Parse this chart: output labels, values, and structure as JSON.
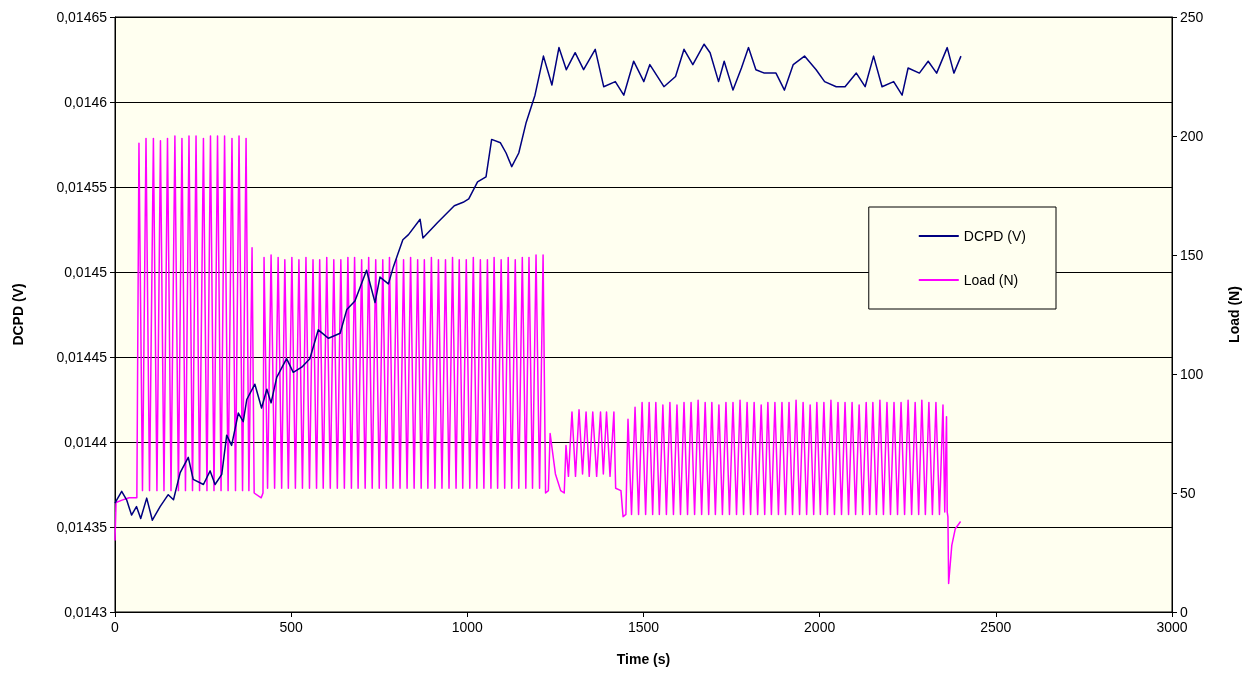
{
  "chart_data": {
    "type": "line",
    "xlabel": "Time (s)",
    "ylabel": "DCPD (V)",
    "y2label": "Load (N)",
    "xlim": [
      0,
      3000
    ],
    "xticks": [
      0,
      500,
      1000,
      1500,
      2000,
      2500,
      3000
    ],
    "ylim": [
      0.0143,
      0.01465
    ],
    "yticks": [
      {
        "value": 0.0143,
        "label": "0,0143"
      },
      {
        "value": 0.01435,
        "label": "0,01435"
      },
      {
        "value": 0.0144,
        "label": "0,0144"
      },
      {
        "value": 0.01445,
        "label": "0,01445"
      },
      {
        "value": 0.0145,
        "label": "0,0145"
      },
      {
        "value": 0.01455,
        "label": "0,01455"
      },
      {
        "value": 0.0146,
        "label": "0,0146"
      },
      {
        "value": 0.01465,
        "label": "0,01465"
      }
    ],
    "y2lim": [
      0,
      250
    ],
    "y2ticks": [
      0,
      50,
      100,
      150,
      200,
      250
    ],
    "grid": "y",
    "legend": "right",
    "marker": "none",
    "line_style": "solid",
    "series": [
      {
        "name": "DCPD (V)",
        "color": "#000080",
        "x": [
          0,
          5,
          19,
          33,
          47,
          61,
          73,
          90,
          106,
          128,
          151,
          166,
          185,
          208,
          222,
          251,
          270,
          284,
          303,
          317,
          331,
          350,
          364,
          374,
          397,
          416,
          431,
          443,
          459,
          487,
          506,
          530,
          553,
          577,
          606,
          639,
          658,
          681,
          714,
          738,
          752,
          776,
          790,
          817,
          833,
          866,
          874,
          915,
          963,
          988,
          1004,
          1029,
          1053,
          1069,
          1094,
          1110,
          1126,
          1146,
          1167,
          1192,
          1216,
          1240,
          1260,
          1281,
          1306,
          1330,
          1363,
          1387,
          1420,
          1444,
          1472,
          1501,
          1518,
          1558,
          1591,
          1615,
          1640,
          1672,
          1689,
          1713,
          1729,
          1754,
          1778,
          1798,
          1819,
          1843,
          1876,
          1900,
          1925,
          1957,
          1990,
          2014,
          2047,
          2072,
          2104,
          2129,
          2153,
          2177,
          2210,
          2234,
          2251,
          2283,
          2308,
          2332,
          2362,
          2381,
          2401
        ],
        "values": [
          0.014364,
          0.014366,
          0.014371,
          0.014366,
          0.014357,
          0.014362,
          0.014355,
          0.014367,
          0.014354,
          0.014362,
          0.014369,
          0.014366,
          0.014382,
          0.014391,
          0.014378,
          0.014375,
          0.014383,
          0.014375,
          0.014381,
          0.014404,
          0.014398,
          0.014417,
          0.014412,
          0.014425,
          0.014434,
          0.01442,
          0.014431,
          0.014423,
          0.014438,
          0.014449,
          0.014441,
          0.014444,
          0.014449,
          0.014466,
          0.014461,
          0.014464,
          0.014478,
          0.014483,
          0.014501,
          0.014482,
          0.014497,
          0.014493,
          0.014503,
          0.014519,
          0.014522,
          0.014531,
          0.01452,
          0.014529,
          0.014539,
          0.014541,
          0.014543,
          0.014553,
          0.014556,
          0.014578,
          0.014576,
          0.01457,
          0.014562,
          0.01457,
          0.014588,
          0.014604,
          0.014627,
          0.01461,
          0.014632,
          0.014619,
          0.014629,
          0.014619,
          0.014631,
          0.014609,
          0.014612,
          0.014604,
          0.014624,
          0.014612,
          0.014622,
          0.014609,
          0.014615,
          0.014631,
          0.014622,
          0.014634,
          0.014629,
          0.014612,
          0.014624,
          0.014607,
          0.01462,
          0.014632,
          0.014619,
          0.014617,
          0.014617,
          0.014607,
          0.014622,
          0.014627,
          0.014619,
          0.014612,
          0.014609,
          0.014609,
          0.014617,
          0.014609,
          0.014627,
          0.014609,
          0.014612,
          0.014604,
          0.01462,
          0.014617,
          0.014624,
          0.014617,
          0.014632,
          0.014617,
          0.014627
        ]
      },
      {
        "name": "Load (N)",
        "color": "#ff00ff",
        "axis": "y2",
        "x": [
          0,
          3,
          20,
          40,
          62,
          68,
          78,
          88,
          98,
          109,
          119,
          129,
          139,
          149,
          159,
          170,
          180,
          190,
          200,
          210,
          220,
          230,
          240,
          251,
          261,
          271,
          281,
          291,
          301,
          311,
          321,
          332,
          342,
          352,
          362,
          372,
          380,
          389,
          395,
          415,
          420,
          423,
          433,
          443,
          453,
          463,
          473,
          482,
          492,
          502,
          512,
          522,
          532,
          542,
          552,
          562,
          572,
          581,
          591,
          601,
          611,
          621,
          631,
          641,
          651,
          661,
          671,
          680,
          690,
          700,
          710,
          720,
          730,
          740,
          750,
          760,
          770,
          779,
          789,
          799,
          809,
          819,
          829,
          839,
          849,
          859,
          869,
          878,
          888,
          898,
          908,
          918,
          928,
          938,
          948,
          958,
          968,
          977,
          987,
          997,
          1007,
          1017,
          1027,
          1037,
          1047,
          1057,
          1067,
          1076,
          1086,
          1096,
          1106,
          1116,
          1126,
          1136,
          1146,
          1156,
          1166,
          1175,
          1185,
          1195,
          1205,
          1215,
          1222,
          1230,
          1235,
          1250,
          1265,
          1275,
          1280,
          1287,
          1297,
          1307,
          1317,
          1327,
          1337,
          1346,
          1356,
          1367,
          1378,
          1386,
          1395,
          1405,
          1416,
          1421,
          1436,
          1442,
          1450,
          1456,
          1466,
          1476,
          1486,
          1496,
          1506,
          1516,
          1526,
          1535,
          1545,
          1555,
          1565,
          1575,
          1585,
          1595,
          1605,
          1615,
          1625,
          1635,
          1645,
          1655,
          1665,
          1675,
          1685,
          1694,
          1704,
          1714,
          1724,
          1734,
          1744,
          1754,
          1764,
          1774,
          1784,
          1794,
          1804,
          1814,
          1824,
          1834,
          1844,
          1853,
          1863,
          1873,
          1883,
          1893,
          1903,
          1913,
          1923,
          1933,
          1943,
          1953,
          1963,
          1973,
          1983,
          1992,
          2002,
          2012,
          2022,
          2032,
          2042,
          2052,
          2062,
          2072,
          2082,
          2092,
          2102,
          2112,
          2122,
          2132,
          2142,
          2151,
          2161,
          2171,
          2181,
          2191,
          2201,
          2211,
          2221,
          2231,
          2241,
          2251,
          2261,
          2271,
          2281,
          2290,
          2300,
          2310,
          2320,
          2330,
          2340,
          2350,
          2355,
          2360,
          2362,
          2364,
          2366,
          2375,
          2385,
          2400
        ],
        "values": [
          30,
          46,
          47,
          48,
          48,
          197,
          51,
          199,
          51,
          199,
          51,
          198,
          51,
          199,
          51,
          200,
          51,
          199,
          51,
          200,
          51,
          200,
          51,
          199,
          51,
          200,
          51,
          200,
          51,
          200,
          51,
          199,
          51,
          200,
          51,
          199,
          51,
          153,
          50,
          48,
          50,
          149,
          52,
          150,
          52,
          149,
          52,
          148,
          52,
          149,
          52,
          148,
          52,
          149,
          52,
          148,
          52,
          148,
          52,
          149,
          52,
          148,
          52,
          148,
          52,
          149,
          52,
          149,
          52,
          148,
          52,
          149,
          52,
          148,
          52,
          148,
          52,
          149,
          52,
          148,
          52,
          148,
          52,
          149,
          52,
          148,
          52,
          148,
          52,
          149,
          52,
          148,
          52,
          148,
          52,
          149,
          52,
          148,
          52,
          148,
          52,
          149,
          52,
          148,
          52,
          148,
          52,
          149,
          52,
          148,
          52,
          149,
          52,
          148,
          52,
          149,
          52,
          149,
          52,
          150,
          52,
          150,
          50,
          51,
          75,
          58,
          51,
          50,
          70,
          57,
          84,
          57,
          85,
          58,
          84,
          57,
          84,
          57,
          84,
          58,
          84,
          57,
          84,
          52,
          51,
          40,
          41,
          81,
          41,
          86,
          41,
          88,
          41,
          88,
          41,
          88,
          41,
          87,
          41,
          88,
          41,
          87,
          41,
          88,
          41,
          88,
          41,
          89,
          41,
          88,
          41,
          88,
          41,
          87,
          41,
          88,
          41,
          88,
          41,
          89,
          41,
          88,
          41,
          88,
          41,
          87,
          41,
          88,
          41,
          88,
          41,
          88,
          41,
          88,
          41,
          89,
          41,
          88,
          41,
          87,
          41,
          88,
          41,
          88,
          41,
          89,
          41,
          88,
          41,
          88,
          41,
          88,
          41,
          87,
          41,
          88,
          41,
          88,
          41,
          89,
          41,
          88,
          41,
          88,
          41,
          88,
          41,
          89,
          41,
          88,
          41,
          89,
          41,
          88,
          41,
          88,
          41,
          87,
          42,
          82,
          42,
          40,
          12,
          28,
          35,
          38
        ]
      }
    ]
  }
}
